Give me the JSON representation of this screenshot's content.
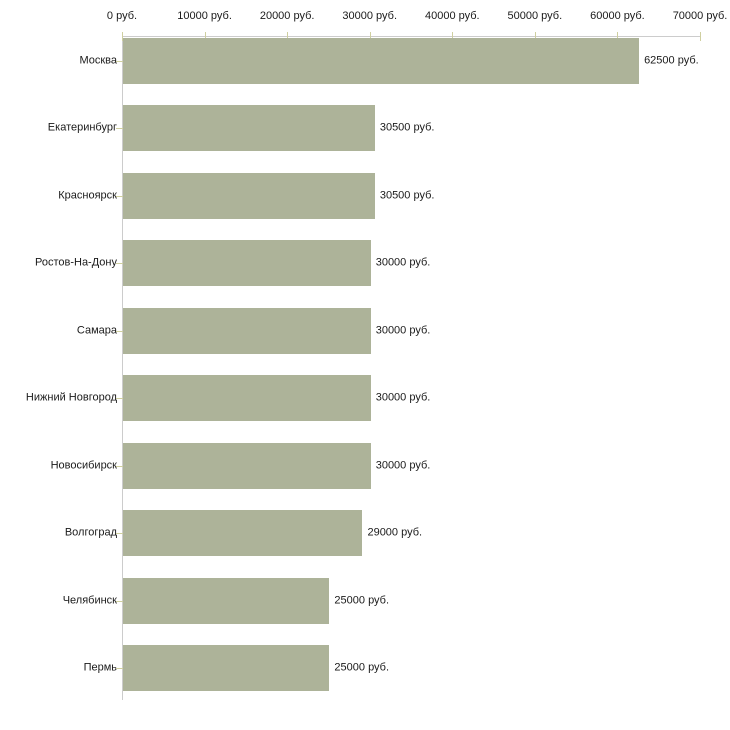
{
  "chart_data": {
    "type": "bar",
    "orientation": "horizontal",
    "title": "",
    "xlabel": "",
    "ylabel": "",
    "unit": "руб.",
    "categories": [
      "Москва",
      "Екатеринбург",
      "Красноярск",
      "Ростов-На-Дону",
      "Самара",
      "Нижний Новгород",
      "Новосибирск",
      "Волгоград",
      "Челябинск",
      "Пермь"
    ],
    "values": [
      62500,
      30500,
      30500,
      30000,
      30000,
      30000,
      30000,
      29000,
      25000,
      25000
    ],
    "value_labels": [
      "62500 руб.",
      "30500 руб.",
      "30500 руб.",
      "30000 руб.",
      "30000 руб.",
      "30000 руб.",
      "30000 руб.",
      "29000 руб.",
      "25000 руб.",
      "25000 руб."
    ],
    "x_axis": {
      "position": "top",
      "min": 0,
      "max": 70000,
      "step": 10000,
      "tick_labels": [
        "0 руб.",
        "10000 руб.",
        "20000 руб.",
        "30000 руб.",
        "40000 руб.",
        "50000 руб.",
        "60000 руб.",
        "70000 руб."
      ]
    },
    "grid": false,
    "legend": false,
    "colors": {
      "bar": "#adb399",
      "axis": "#cccccc",
      "tick": "#cfcfa0",
      "text": "#1a1a1a",
      "background": "#ffffff"
    }
  }
}
